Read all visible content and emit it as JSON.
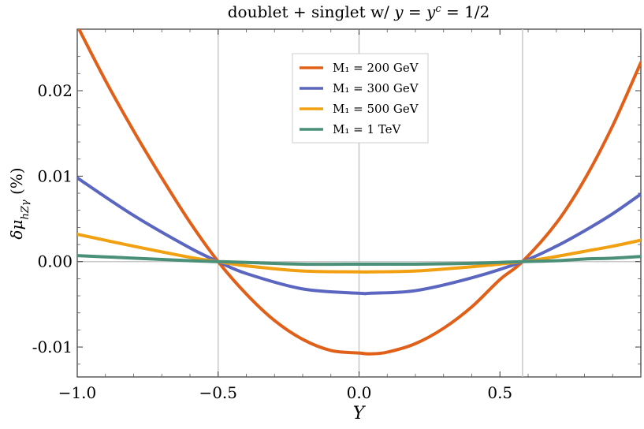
{
  "chart_data": {
    "type": "line",
    "title": "doublet + singlet w/ y = yᶜ = 1/2",
    "xlabel": "Y",
    "ylabel": "δμ_hZγ (%)",
    "xlim": [
      -1.0,
      1.0
    ],
    "ylim": [
      -0.0135,
      0.0272
    ],
    "x_ticks": [
      -1.0,
      -0.5,
      0.0,
      0.5
    ],
    "x_tick_labels": [
      "−1.0",
      "−0.5",
      "0.0",
      "0.5"
    ],
    "y_ticks": [
      -0.01,
      0.0,
      0.01,
      0.02
    ],
    "y_tick_labels": [
      "-0.01",
      "0.00",
      "0.01",
      "0.02"
    ],
    "grid": "vertical lines at x = -0.5, 0.0, 0.58; horizontal line at y = 0",
    "vertical_gridlines": [
      -0.5,
      0.0,
      0.58
    ],
    "legend_position": "top-center",
    "series": [
      {
        "name": "M₁ = 200 GeV",
        "color": "#e0601a",
        "x": [
          -1.0,
          -0.9,
          -0.8,
          -0.7,
          -0.6,
          -0.5,
          -0.4,
          -0.3,
          -0.2,
          -0.1,
          0.0,
          0.04,
          0.1,
          0.2,
          0.3,
          0.4,
          0.5,
          0.58,
          0.7,
          0.8,
          0.9,
          1.0
        ],
        "values": [
          0.0276,
          0.0212,
          0.0153,
          0.0098,
          0.0046,
          0.0,
          -0.0038,
          -0.0069,
          -0.0091,
          -0.0104,
          -0.0107,
          -0.0108,
          -0.0106,
          -0.0096,
          -0.0078,
          -0.0053,
          -0.0021,
          0.0,
          0.0045,
          0.0096,
          0.0159,
          0.0233
        ]
      },
      {
        "name": "M₁ = 300 GeV",
        "color": "#5b66c0",
        "x": [
          -1.0,
          -0.8,
          -0.6,
          -0.5,
          -0.4,
          -0.2,
          0.0,
          0.04,
          0.2,
          0.4,
          0.58,
          0.7,
          0.8,
          0.9,
          1.0
        ],
        "values": [
          0.0098,
          0.0054,
          0.0016,
          0.0,
          -0.0014,
          -0.0032,
          -0.0037,
          -0.0037,
          -0.0034,
          -0.0019,
          0.0,
          0.0018,
          0.0036,
          0.0056,
          0.0079
        ]
      },
      {
        "name": "M₁ = 500 GeV",
        "color": "#f0a010",
        "x": [
          -1.0,
          -0.8,
          -0.6,
          -0.5,
          -0.4,
          -0.2,
          0.0,
          0.04,
          0.2,
          0.4,
          0.58,
          0.7,
          0.8,
          0.9,
          1.0
        ],
        "values": [
          0.0032,
          0.0018,
          0.0005,
          0.0,
          -0.0005,
          -0.0011,
          -0.0012,
          -0.0012,
          -0.0011,
          -0.0006,
          0.0,
          0.0006,
          0.0012,
          0.0018,
          0.0025
        ]
      },
      {
        "name": "M₁ = 1 TeV",
        "color": "#4a8f78",
        "x": [
          -1.0,
          -0.8,
          -0.6,
          -0.5,
          -0.4,
          -0.2,
          0.0,
          0.04,
          0.2,
          0.4,
          0.58,
          0.7,
          0.8,
          0.9,
          1.0
        ],
        "values": [
          0.0007,
          0.0004,
          0.0001,
          0.0,
          -0.0001,
          -0.0003,
          -0.0003,
          -0.0003,
          -0.0003,
          -0.0002,
          0.0,
          0.0001,
          0.0003,
          0.0004,
          0.0006
        ]
      }
    ]
  }
}
